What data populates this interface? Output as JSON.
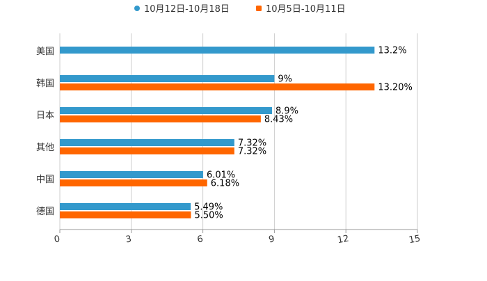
{
  "chart_data": {
    "type": "bar",
    "orientation": "horizontal",
    "categories": [
      "美国",
      "韩国",
      "日本",
      "其他",
      "中国",
      "德国"
    ],
    "series": [
      {
        "name": "10月12日-10月18日",
        "color": "#3399CC",
        "values": [
          13.2,
          9,
          8.9,
          7.32,
          6.01,
          5.49
        ],
        "labels": [
          "13.2%",
          "9%",
          "8.9%",
          "7.32%",
          "6.01%",
          "5.49%"
        ]
      },
      {
        "name": "10月5日-10月11日",
        "color": "#FF6600",
        "values": [
          null,
          13.2,
          8.43,
          7.32,
          6.18,
          5.5
        ],
        "labels": [
          "",
          "13.20%",
          "8.43%",
          "7.32%",
          "6.18%",
          "5.50%"
        ]
      }
    ],
    "xlim": [
      0,
      15
    ],
    "xticks": [
      0,
      3,
      6,
      9,
      12,
      15
    ],
    "xtick_labels": [
      "0",
      "3",
      "6",
      "9",
      "12",
      "15"
    ],
    "grid": true,
    "legend": "top-center",
    "title": "",
    "xlabel": "",
    "ylabel": ""
  }
}
